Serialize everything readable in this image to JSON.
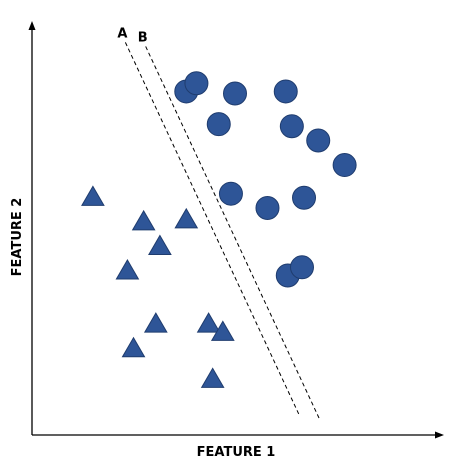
{
  "chart_data": {
    "type": "scatter",
    "xlabel": "FEATURE 1",
    "ylabel": "FEATURE 2",
    "ticks_shown": false,
    "grid": false,
    "colors": {
      "marker_fill": "#2e5597",
      "marker_stroke": "#1f3c6e",
      "axis": "#000000",
      "separator": "#000000"
    },
    "xlim": [
      0,
      100
    ],
    "ylim": [
      0,
      100
    ],
    "series": [
      {
        "marker": "circle",
        "points": [
          {
            "x": 38,
            "y": 84
          },
          {
            "x": 40.5,
            "y": 86
          },
          {
            "x": 50,
            "y": 83.5
          },
          {
            "x": 62.5,
            "y": 84
          },
          {
            "x": 46,
            "y": 76
          },
          {
            "x": 64,
            "y": 75.5
          },
          {
            "x": 70.5,
            "y": 72
          },
          {
            "x": 77,
            "y": 66
          },
          {
            "x": 49,
            "y": 59
          },
          {
            "x": 58,
            "y": 55.5
          },
          {
            "x": 67,
            "y": 58
          },
          {
            "x": 63,
            "y": 39
          },
          {
            "x": 66.5,
            "y": 41
          }
        ]
      },
      {
        "marker": "triangle",
        "points": [
          {
            "x": 15,
            "y": 58
          },
          {
            "x": 27.5,
            "y": 52
          },
          {
            "x": 38,
            "y": 52.5
          },
          {
            "x": 31.5,
            "y": 46
          },
          {
            "x": 23.5,
            "y": 40
          },
          {
            "x": 30.5,
            "y": 27
          },
          {
            "x": 43.5,
            "y": 27
          },
          {
            "x": 47,
            "y": 25
          },
          {
            "x": 25,
            "y": 21
          },
          {
            "x": 44.5,
            "y": 13.5
          }
        ]
      }
    ],
    "separators": [
      {
        "label": "A",
        "from": {
          "x": 23,
          "y": 96
        },
        "to": {
          "x": 66,
          "y": 4.5
        }
      },
      {
        "label": "B",
        "from": {
          "x": 28,
          "y": 95
        },
        "to": {
          "x": 71,
          "y": 3.5
        }
      }
    ]
  }
}
